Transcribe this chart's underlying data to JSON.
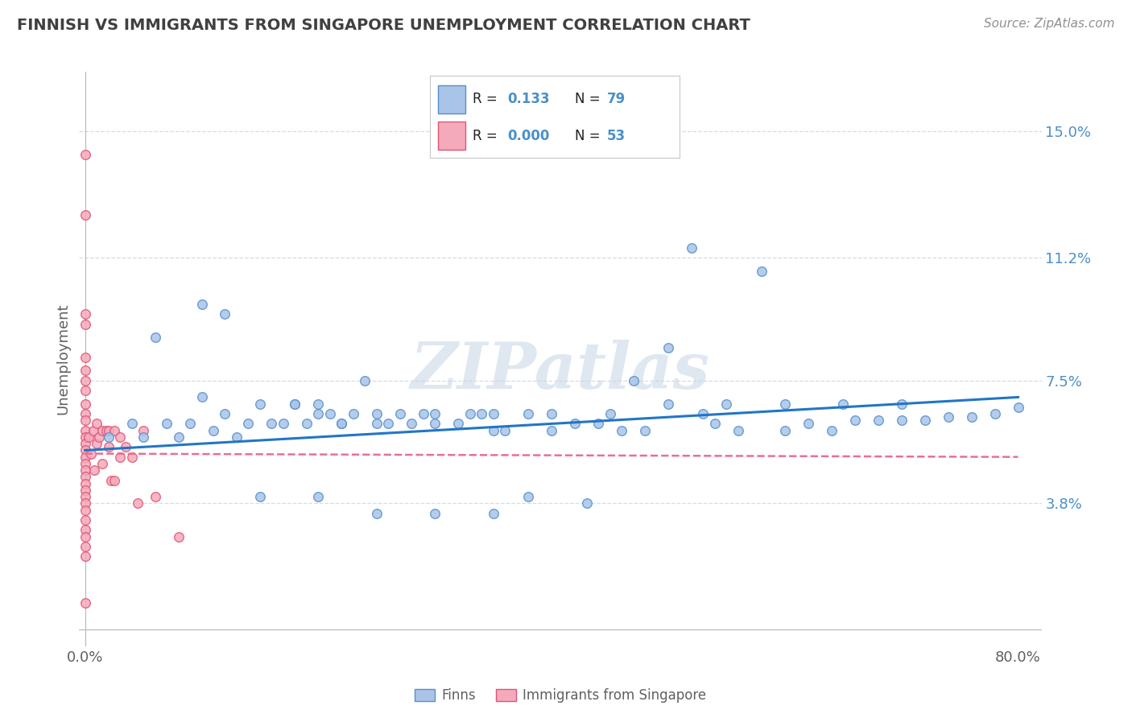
{
  "title": "FINNISH VS IMMIGRANTS FROM SINGAPORE UNEMPLOYMENT CORRELATION CHART",
  "source_text": "Source: ZipAtlas.com",
  "ylabel": "Unemployment",
  "xlim": [
    -0.005,
    0.82
  ],
  "ylim": [
    -0.005,
    0.168
  ],
  "yticks": [
    0.038,
    0.075,
    0.112,
    0.15
  ],
  "ytick_labels": [
    "3.8%",
    "7.5%",
    "11.2%",
    "15.0%"
  ],
  "xtick_vals": [
    0.0,
    0.1,
    0.2,
    0.3,
    0.4,
    0.5,
    0.6,
    0.7,
    0.8
  ],
  "xtick_labels": [
    "0.0%",
    "",
    "",
    "",
    "",
    "",
    "",
    "",
    "80.0%"
  ],
  "finns_color": "#aac4e8",
  "singapore_color": "#f5aabb",
  "finns_edge_color": "#5590cc",
  "singapore_edge_color": "#e05575",
  "trend_finn_color": "#2176c7",
  "trend_singapore_color": "#e87090",
  "R_finn": 0.133,
  "N_finn": 79,
  "R_singapore": 0.0,
  "N_singapore": 53,
  "watermark": "ZIPatlas",
  "watermark_color": "#c5d5e5",
  "background_color": "#ffffff",
  "grid_color": "#c8d5e2",
  "axis_label_color": "#4a90c8",
  "title_color": "#404040",
  "source_color": "#909090",
  "finns_x": [
    0.02,
    0.04,
    0.05,
    0.06,
    0.07,
    0.08,
    0.09,
    0.1,
    0.11,
    0.12,
    0.13,
    0.14,
    0.15,
    0.16,
    0.17,
    0.18,
    0.19,
    0.2,
    0.21,
    0.22,
    0.23,
    0.24,
    0.25,
    0.26,
    0.27,
    0.28,
    0.29,
    0.3,
    0.32,
    0.33,
    0.34,
    0.35,
    0.36,
    0.38,
    0.4,
    0.42,
    0.44,
    0.46,
    0.48,
    0.5,
    0.52,
    0.54,
    0.56,
    0.58,
    0.6,
    0.62,
    0.64,
    0.66,
    0.68,
    0.7,
    0.72,
    0.74,
    0.76,
    0.78,
    0.8,
    0.1,
    0.12,
    0.15,
    0.2,
    0.22,
    0.25,
    0.3,
    0.35,
    0.4,
    0.45,
    0.5,
    0.55,
    0.6,
    0.65,
    0.7,
    0.47,
    0.53,
    0.38,
    0.43,
    0.18,
    0.2,
    0.25,
    0.3,
    0.35
  ],
  "finns_y": [
    0.058,
    0.062,
    0.058,
    0.088,
    0.062,
    0.058,
    0.062,
    0.07,
    0.06,
    0.065,
    0.058,
    0.062,
    0.068,
    0.062,
    0.062,
    0.068,
    0.062,
    0.065,
    0.065,
    0.062,
    0.065,
    0.075,
    0.065,
    0.062,
    0.065,
    0.062,
    0.065,
    0.062,
    0.062,
    0.065,
    0.065,
    0.06,
    0.06,
    0.065,
    0.06,
    0.062,
    0.062,
    0.06,
    0.06,
    0.085,
    0.115,
    0.062,
    0.06,
    0.108,
    0.06,
    0.062,
    0.06,
    0.063,
    0.063,
    0.063,
    0.063,
    0.064,
    0.064,
    0.065,
    0.067,
    0.098,
    0.095,
    0.04,
    0.04,
    0.062,
    0.062,
    0.065,
    0.065,
    0.065,
    0.065,
    0.068,
    0.068,
    0.068,
    0.068,
    0.068,
    0.075,
    0.065,
    0.04,
    0.038,
    0.068,
    0.068,
    0.035,
    0.035,
    0.035
  ],
  "singapore_x": [
    0.0,
    0.0,
    0.0,
    0.0,
    0.0,
    0.0,
    0.0,
    0.0,
    0.0,
    0.0,
    0.0,
    0.0,
    0.0,
    0.0,
    0.0,
    0.0,
    0.0,
    0.0,
    0.0,
    0.0,
    0.0,
    0.0,
    0.0,
    0.0,
    0.0,
    0.0,
    0.0,
    0.0,
    0.0,
    0.0,
    0.003,
    0.005,
    0.007,
    0.008,
    0.01,
    0.01,
    0.012,
    0.015,
    0.015,
    0.018,
    0.02,
    0.02,
    0.022,
    0.025,
    0.025,
    0.03,
    0.03,
    0.035,
    0.04,
    0.045,
    0.05,
    0.06,
    0.08
  ],
  "singapore_y": [
    0.143,
    0.125,
    0.095,
    0.092,
    0.082,
    0.078,
    0.075,
    0.072,
    0.068,
    0.065,
    0.063,
    0.06,
    0.058,
    0.056,
    0.054,
    0.052,
    0.05,
    0.048,
    0.046,
    0.044,
    0.042,
    0.04,
    0.038,
    0.036,
    0.033,
    0.03,
    0.028,
    0.025,
    0.022,
    0.008,
    0.058,
    0.053,
    0.06,
    0.048,
    0.062,
    0.056,
    0.058,
    0.06,
    0.05,
    0.06,
    0.06,
    0.055,
    0.045,
    0.06,
    0.045,
    0.058,
    0.052,
    0.055,
    0.052,
    0.038,
    0.06,
    0.04,
    0.028
  ],
  "trend_finn_x0": 0.0,
  "trend_finn_y0": 0.054,
  "trend_finn_x1": 0.8,
  "trend_finn_y1": 0.07,
  "trend_sing_x0": 0.0,
  "trend_sing_y0": 0.053,
  "trend_sing_x1": 0.8,
  "trend_sing_y1": 0.052
}
